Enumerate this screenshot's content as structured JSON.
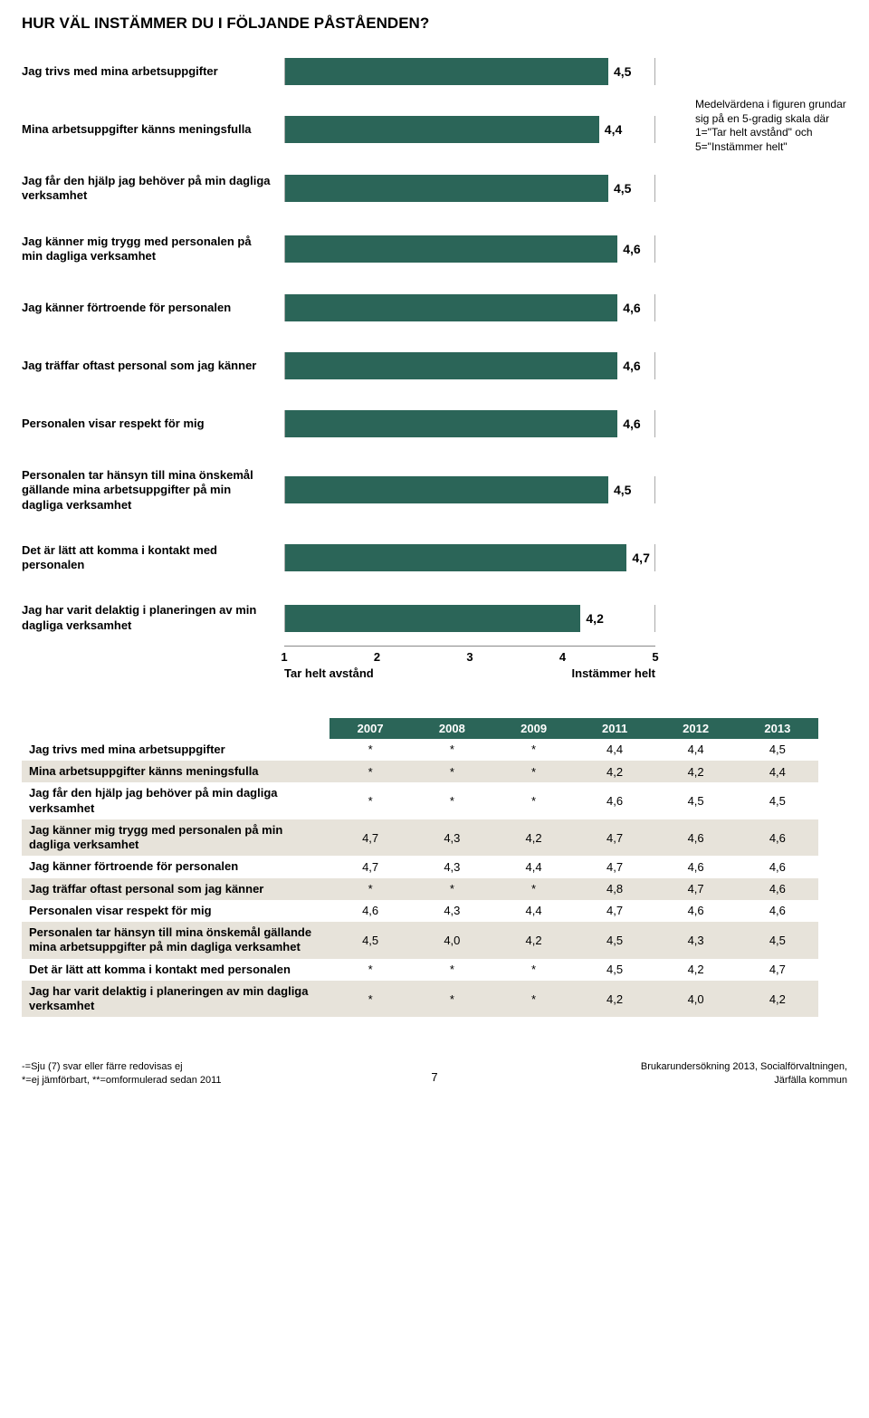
{
  "title": "HUR VÄL INSTÄMMER DU I FÖLJANDE PÅSTÅENDEN?",
  "note": "Medelvärdena i figuren grundar sig på en 5-gradig skala där 1=\"Tar helt avstånd\" och 5=\"Instämmer helt\"",
  "chart": {
    "type": "bar",
    "bar_color": "#2b6558",
    "value_text_color": "#000000",
    "label_fontsize": 13,
    "value_fontsize": 14,
    "xlim_min": 1,
    "xlim_max": 5,
    "ticks": [
      "1",
      "2",
      "3",
      "4",
      "5"
    ],
    "axis_label_left": "Tar helt avstånd",
    "axis_label_right": "Instämmer helt",
    "items": [
      {
        "label": "Jag trivs med mina arbetsuppgifter",
        "value": 4.5,
        "display": "4,5"
      },
      {
        "label": "Mina arbetsuppgifter känns meningsfulla",
        "value": 4.4,
        "display": "4,4"
      },
      {
        "label": "Jag får den hjälp jag behöver på min dagliga verksamhet",
        "value": 4.5,
        "display": "4,5"
      },
      {
        "label": "Jag känner mig trygg med personalen på min dagliga verksamhet",
        "value": 4.6,
        "display": "4,6"
      },
      {
        "label": "Jag känner förtroende för personalen",
        "value": 4.6,
        "display": "4,6"
      },
      {
        "label": "Jag träffar oftast personal som jag känner",
        "value": 4.6,
        "display": "4,6"
      },
      {
        "label": "Personalen visar respekt för mig",
        "value": 4.6,
        "display": "4,6"
      },
      {
        "label": "Personalen tar hänsyn till mina önskemål gällande mina arbetsuppgifter på min dagliga verksamhet",
        "value": 4.5,
        "display": "4,5"
      },
      {
        "label": "Det är lätt att komma i kontakt med personalen",
        "value": 4.7,
        "display": "4,7"
      },
      {
        "label": "Jag har varit delaktig i planeringen av min dagliga verksamhet",
        "value": 4.2,
        "display": "4,2"
      }
    ]
  },
  "table": {
    "header_bg": "#2b6558",
    "row_alt_bg": "#e7e3da",
    "row_bg": "#ffffff",
    "columns": [
      "2007",
      "2008",
      "2009",
      "2011",
      "2012",
      "2013"
    ],
    "rows": [
      {
        "label": "Jag trivs med mina arbetsuppgifter",
        "cells": [
          "*",
          "*",
          "*",
          "4,4",
          "4,4",
          "4,5"
        ]
      },
      {
        "label": "Mina arbetsuppgifter känns meningsfulla",
        "cells": [
          "*",
          "*",
          "*",
          "4,2",
          "4,2",
          "4,4"
        ]
      },
      {
        "label": "Jag får den hjälp jag behöver på min dagliga verksamhet",
        "cells": [
          "*",
          "*",
          "*",
          "4,6",
          "4,5",
          "4,5"
        ]
      },
      {
        "label": "Jag känner mig trygg med personalen på min dagliga verksamhet",
        "cells": [
          "4,7",
          "4,3",
          "4,2",
          "4,7",
          "4,6",
          "4,6"
        ]
      },
      {
        "label": "Jag känner förtroende för personalen",
        "cells": [
          "4,7",
          "4,3",
          "4,4",
          "4,7",
          "4,6",
          "4,6"
        ]
      },
      {
        "label": "Jag träffar oftast personal som jag känner",
        "cells": [
          "*",
          "*",
          "*",
          "4,8",
          "4,7",
          "4,6"
        ]
      },
      {
        "label": "Personalen visar respekt för mig",
        "cells": [
          "4,6",
          "4,3",
          "4,4",
          "4,7",
          "4,6",
          "4,6"
        ]
      },
      {
        "label": "Personalen tar hänsyn till mina önskemål gällande mina arbetsuppgifter på min dagliga verksamhet",
        "cells": [
          "4,5",
          "4,0",
          "4,2",
          "4,5",
          "4,3",
          "4,5"
        ]
      },
      {
        "label": "Det är lätt att komma i kontakt med personalen",
        "cells": [
          "*",
          "*",
          "*",
          "4,5",
          "4,2",
          "4,7"
        ]
      },
      {
        "label": "Jag har varit delaktig i planeringen av min dagliga verksamhet",
        "cells": [
          "*",
          "*",
          "*",
          "4,2",
          "4,0",
          "4,2"
        ]
      }
    ]
  },
  "footer": {
    "left1": "-=Sju (7) svar eller färre redovisas ej",
    "left2": "*=ej jämförbart, **=omformulerad sedan 2011",
    "right1": "Brukarundersökning 2013, Socialförvaltningen,",
    "right2": "Järfälla kommun",
    "page": "7"
  }
}
